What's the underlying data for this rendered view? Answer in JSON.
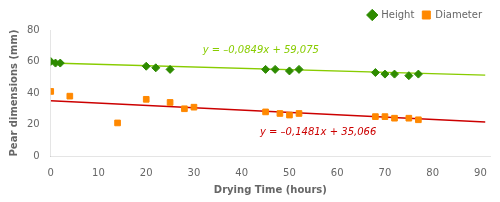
{
  "chart_data": {
    "type": "scatter",
    "xlabel": "Drying Time (hours)",
    "ylabel": "Pear dimensions (mm)",
    "xlim": [
      0,
      92
    ],
    "ylim": [
      0,
      80
    ],
    "xticks": [
      0,
      10,
      20,
      30,
      40,
      50,
      60,
      70,
      80,
      90
    ],
    "yticks": [
      0,
      20,
      40,
      60,
      80
    ],
    "grid": false,
    "legend": "upper right",
    "series": [
      {
        "type": "line",
        "color": "#88cc00",
        "x": [
          0,
          91
        ],
        "values": [
          59.075,
          51.3491
        ]
      },
      {
        "type": "line",
        "color": "#cc0000",
        "x": [
          0,
          91
        ],
        "values": [
          35.066,
          21.5889
        ]
      },
      {
        "name": "Height",
        "type": "scatter",
        "marker": "diamond",
        "color": "#2e8b00",
        "x": [
          0,
          1,
          2,
          20,
          22,
          25,
          45,
          47,
          50,
          52,
          68,
          70,
          72,
          75,
          77
        ],
        "values": [
          60,
          59,
          59,
          57,
          56,
          55,
          55,
          55,
          54,
          55,
          53,
          52,
          52,
          51,
          52
        ]
      },
      {
        "name": "Diameter",
        "type": "scatter",
        "marker": "square",
        "color": "#ff8800",
        "x": [
          0,
          4,
          14,
          20,
          25,
          28,
          30,
          45,
          48,
          50,
          52,
          68,
          70,
          72,
          75,
          77
        ],
        "values": [
          41,
          38,
          21,
          36,
          34,
          30,
          31,
          28,
          27,
          26,
          27,
          25,
          25,
          24,
          24,
          23
        ]
      }
    ],
    "annotations": [
      {
        "text": "y = –0,0849x + 59,075",
        "x": 44,
        "y": 64,
        "color": "#88cc00"
      },
      {
        "text": "y = –0,1481x + 35,066",
        "x": 56,
        "y": 12,
        "color": "#cc0000"
      }
    ]
  }
}
